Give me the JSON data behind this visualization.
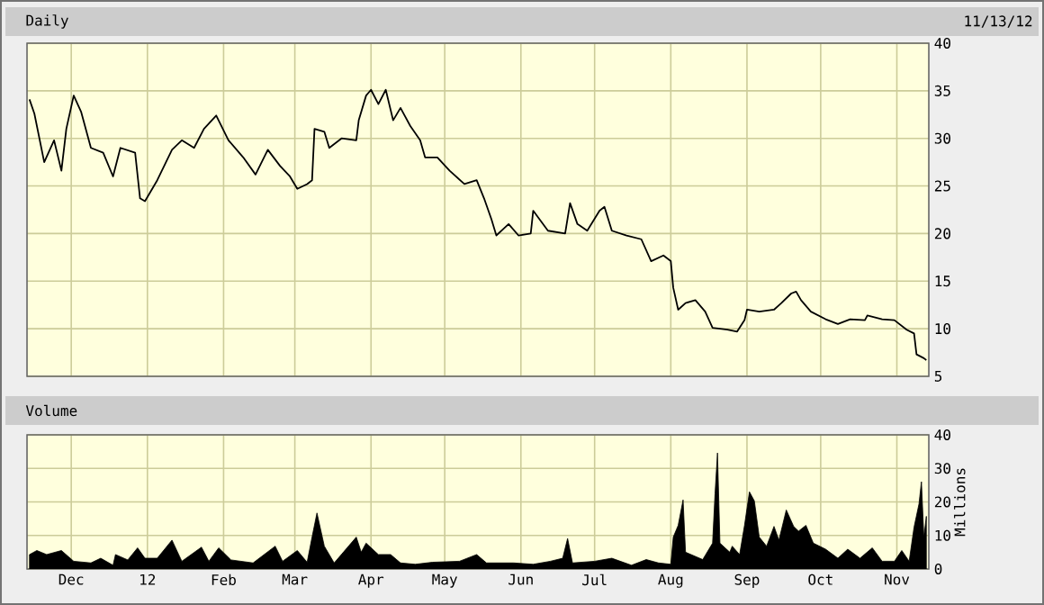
{
  "chart_data": [
    {
      "type": "line",
      "title": "Daily",
      "annotations": [
        "11/13/12"
      ],
      "xlim": [
        "2011-11-13",
        "2012-11-14"
      ],
      "ylim": [
        5,
        40
      ],
      "yticks": [
        5,
        10,
        15,
        20,
        25,
        30,
        35,
        40
      ],
      "grid": true,
      "tick_labels": "y",
      "xticks": [
        {
          "value": "2011-12-01",
          "label": null
        },
        {
          "value": "2012-01-01",
          "label": null
        },
        {
          "value": "2012-02-01",
          "label": null
        },
        {
          "value": "2012-03-01",
          "label": null
        },
        {
          "value": "2012-04-01",
          "label": null
        },
        {
          "value": "2012-05-01",
          "label": null
        },
        {
          "value": "2012-06-01",
          "label": null
        },
        {
          "value": "2012-07-01",
          "label": null
        },
        {
          "value": "2012-08-01",
          "label": null
        },
        {
          "value": "2012-09-01",
          "label": null
        },
        {
          "value": "2012-10-01",
          "label": null
        },
        {
          "value": "2012-11-01",
          "label": null
        }
      ],
      "x": [
        "2011-11-14",
        "2011-11-16",
        "2011-11-20",
        "2011-11-24",
        "2011-11-27",
        "2011-11-29",
        "2011-12-02",
        "2011-12-05",
        "2011-12-09",
        "2011-12-14",
        "2011-12-18",
        "2011-12-21",
        "2011-12-27",
        "2011-12-29",
        "2011-12-31",
        "2012-01-05",
        "2012-01-11",
        "2012-01-15",
        "2012-01-20",
        "2012-01-24",
        "2012-01-29",
        "2012-02-03",
        "2012-02-09",
        "2012-02-14",
        "2012-02-19",
        "2012-02-24",
        "2012-02-28",
        "2012-03-02",
        "2012-03-06",
        "2012-03-08",
        "2012-03-09",
        "2012-03-13",
        "2012-03-15",
        "2012-03-20",
        "2012-03-26",
        "2012-03-27",
        "2012-03-30",
        "2012-04-01",
        "2012-04-04",
        "2012-04-07",
        "2012-04-10",
        "2012-04-13",
        "2012-04-17",
        "2012-04-21",
        "2012-04-23",
        "2012-04-28",
        "2012-05-03",
        "2012-05-09",
        "2012-05-14",
        "2012-05-17",
        "2012-05-20",
        "2012-05-22",
        "2012-05-27",
        "2012-05-31",
        "2012-06-05",
        "2012-06-06",
        "2012-06-12",
        "2012-06-19",
        "2012-06-21",
        "2012-06-24",
        "2012-06-28",
        "2012-07-03",
        "2012-07-05",
        "2012-07-08",
        "2012-07-14",
        "2012-07-20",
        "2012-07-24",
        "2012-07-29",
        "2012-08-01",
        "2012-08-02",
        "2012-08-04",
        "2012-08-07",
        "2012-08-11",
        "2012-08-15",
        "2012-08-18",
        "2012-08-24",
        "2012-08-28",
        "2012-08-31",
        "2012-09-01",
        "2012-09-06",
        "2012-09-12",
        "2012-09-15",
        "2012-09-19",
        "2012-09-21",
        "2012-09-23",
        "2012-09-25",
        "2012-09-27",
        "2012-10-03",
        "2012-10-08",
        "2012-10-13",
        "2012-10-19",
        "2012-10-20",
        "2012-10-26",
        "2012-10-31",
        "2012-11-05",
        "2012-11-08",
        "2012-11-09",
        "2012-11-12",
        "2012-11-13"
      ],
      "series": [
        {
          "color": "#000000",
          "values": [
            34.1,
            32.6,
            27.5,
            29.8,
            26.6,
            31,
            34.5,
            32.8,
            29,
            28.5,
            26,
            29,
            28.5,
            23.7,
            23.4,
            25.6,
            28.8,
            29.8,
            29,
            31,
            32.4,
            29.8,
            28,
            26.2,
            28.8,
            27.1,
            26,
            24.7,
            25.2,
            25.6,
            31,
            30.7,
            29,
            30,
            29.8,
            31.9,
            34.5,
            35.1,
            33.6,
            35.1,
            31.9,
            33.2,
            31.3,
            29.8,
            28,
            28,
            26.6,
            25.2,
            25.6,
            23.7,
            21.5,
            19.8,
            21,
            19.8,
            20,
            22.4,
            20.3,
            20,
            23.2,
            21,
            20.3,
            22.4,
            22.8,
            20.3,
            19.8,
            19.4,
            17.1,
            17.7,
            17.1,
            14.3,
            12,
            12.7,
            13,
            11.8,
            10.1,
            9.9,
            9.7,
            10.9,
            12,
            11.8,
            12,
            12.7,
            13.7,
            13.9,
            13,
            12.4,
            11.8,
            11,
            10.5,
            11,
            10.9,
            11.4,
            11,
            10.9,
            9.9,
            9.5,
            7.3,
            6.9,
            6.7
          ]
        }
      ]
    },
    {
      "type": "area",
      "title": "Volume",
      "ylabel": "Millions",
      "xlim": [
        "2011-11-13",
        "2012-11-14"
      ],
      "ylim": [
        0,
        40
      ],
      "yticks": [
        0,
        10,
        20,
        30,
        40
      ],
      "grid": true,
      "xticks": [
        {
          "value": "2011-12-01",
          "label": "Dec"
        },
        {
          "value": "2012-01-01",
          "label": "12"
        },
        {
          "value": "2012-02-01",
          "label": "Feb"
        },
        {
          "value": "2012-03-01",
          "label": "Mar"
        },
        {
          "value": "2012-04-01",
          "label": "Apr"
        },
        {
          "value": "2012-05-01",
          "label": "May"
        },
        {
          "value": "2012-06-01",
          "label": "Jun"
        },
        {
          "value": "2012-07-01",
          "label": "Jul"
        },
        {
          "value": "2012-08-01",
          "label": "Aug"
        },
        {
          "value": "2012-09-01",
          "label": "Sep"
        },
        {
          "value": "2012-10-01",
          "label": "Oct"
        },
        {
          "value": "2012-11-01",
          "label": "Nov"
        }
      ],
      "x": [
        "2011-11-14",
        "2011-11-17",
        "2011-11-21",
        "2011-11-27",
        "2011-12-02",
        "2011-12-09",
        "2011-12-13",
        "2011-12-18",
        "2011-12-19",
        "2011-12-24",
        "2011-12-28",
        "2011-12-31",
        "2012-01-05",
        "2012-01-11",
        "2012-01-15",
        "2012-01-23",
        "2012-01-26",
        "2012-01-30",
        "2012-02-04",
        "2012-02-13",
        "2012-02-22",
        "2012-02-25",
        "2012-03-02",
        "2012-03-06",
        "2012-03-08",
        "2012-03-10",
        "2012-03-13",
        "2012-03-17",
        "2012-03-26",
        "2012-03-28",
        "2012-03-30",
        "2012-04-04",
        "2012-04-09",
        "2012-04-13",
        "2012-04-19",
        "2012-04-26",
        "2012-05-07",
        "2012-05-14",
        "2012-05-18",
        "2012-05-29",
        "2012-06-06",
        "2012-06-13",
        "2012-06-18",
        "2012-06-20",
        "2012-06-22",
        "2012-07-01",
        "2012-07-08",
        "2012-07-16",
        "2012-07-22",
        "2012-07-27",
        "2012-08-01",
        "2012-08-02",
        "2012-08-04",
        "2012-08-06",
        "2012-08-07",
        "2012-08-14",
        "2012-08-18",
        "2012-08-19",
        "2012-08-20",
        "2012-08-21",
        "2012-08-25",
        "2012-08-26",
        "2012-08-29",
        "2012-08-31",
        "2012-09-02",
        "2012-09-04",
        "2012-09-06",
        "2012-09-09",
        "2012-09-12",
        "2012-09-14",
        "2012-09-17",
        "2012-09-20",
        "2012-09-22",
        "2012-09-25",
        "2012-09-28",
        "2012-10-03",
        "2012-10-08",
        "2012-10-12",
        "2012-10-17",
        "2012-10-22",
        "2012-10-26",
        "2012-10-31",
        "2012-11-03",
        "2012-11-06",
        "2012-11-08",
        "2012-11-10",
        "2012-11-11",
        "2012-11-12",
        "2012-11-13"
      ],
      "series": [
        {
          "color": "#000000",
          "values": [
            4.3,
            5.5,
            4.3,
            5.5,
            2.3,
            1.8,
            3.2,
            1.1,
            4.3,
            2.7,
            6.3,
            3.2,
            3.2,
            8.6,
            2.3,
            6.5,
            2.3,
            6.3,
            2.7,
            1.8,
            6.8,
            2.3,
            5.5,
            2.0,
            9.5,
            16.7,
            6.8,
            1.8,
            9.5,
            5.0,
            7.7,
            4.3,
            4.3,
            1.8,
            1.4,
            2.0,
            2.3,
            4.3,
            1.8,
            1.8,
            1.4,
            2.3,
            3.2,
            9.1,
            1.8,
            2.3,
            3.2,
            1.1,
            2.8,
            1.8,
            1.4,
            9.5,
            13,
            20.6,
            5,
            2.8,
            7.7,
            22.4,
            34.6,
            7.7,
            5,
            6.8,
            4.3,
            13,
            23,
            20.3,
            9.5,
            6.8,
            12.7,
            8.6,
            17.6,
            12.7,
            11.3,
            13,
            7.7,
            5.9,
            3.2,
            5.9,
            3.2,
            6.3,
            2.3,
            2.3,
            5.5,
            2.3,
            12.5,
            19.4,
            26,
            9.5,
            15.7
          ]
        }
      ]
    }
  ]
}
